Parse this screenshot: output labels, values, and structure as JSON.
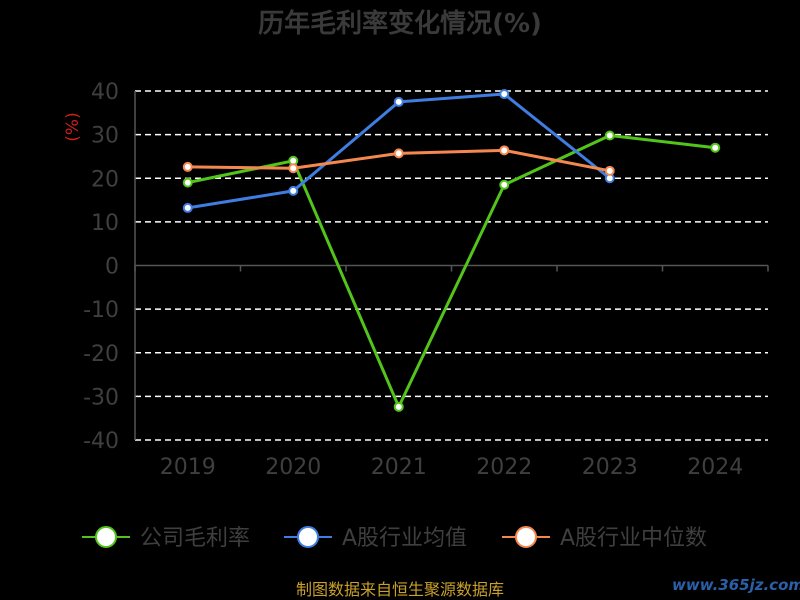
{
  "chart_data": {
    "type": "line",
    "title": "历年毛利率变化情况(%)",
    "ylabel": "(%)",
    "xlabel": "",
    "categories": [
      "2019",
      "2020",
      "2021",
      "2022",
      "2023",
      "2024"
    ],
    "ylim": [
      -40,
      40
    ],
    "yticks": [
      "40",
      "30",
      "20",
      "10",
      "0",
      "-10",
      "-20",
      "-30",
      "-40"
    ],
    "grid": true,
    "legend_position": "bottom",
    "series": [
      {
        "name": "公司毛利率",
        "color": "#52c41a",
        "values": [
          19.0,
          24.0,
          -32.4,
          18.5,
          29.8,
          27.0
        ]
      },
      {
        "name": "A股行业均值",
        "color": "#3f7ee0",
        "values": [
          13.2,
          17.1,
          37.5,
          39.3,
          20.0,
          null
        ]
      },
      {
        "name": "A股行业中位数",
        "color": "#f5884f",
        "values": [
          22.6,
          22.3,
          25.7,
          26.4,
          21.7,
          null
        ]
      }
    ]
  },
  "footer": "制图数据来自恒生聚源数据库",
  "watermark": "www.365jz.com"
}
